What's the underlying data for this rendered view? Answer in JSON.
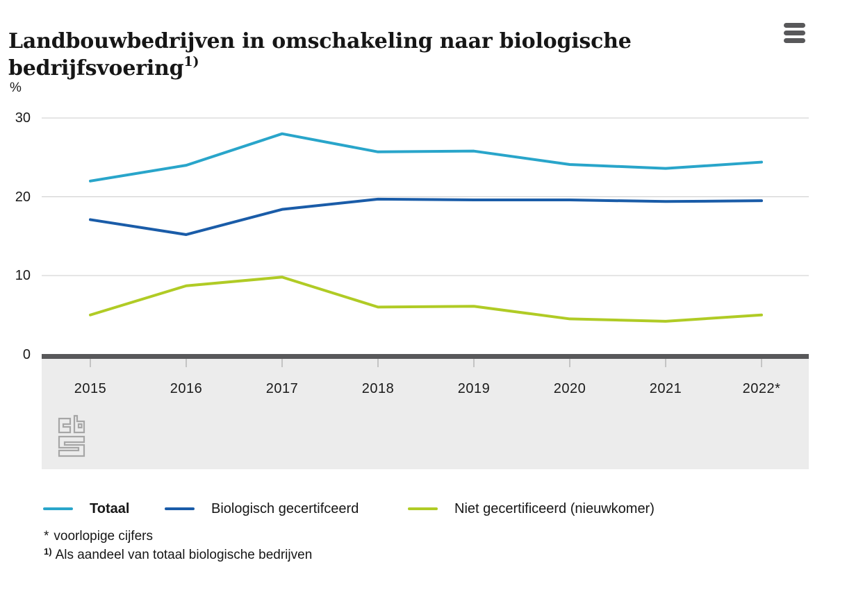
{
  "header": {
    "title_line1": "Landbouwbedrijven in omschakeling naar biologische",
    "title_line2": "bedrijfsvoering",
    "title_superscript": "1)",
    "menu_icon": "hamburger-icon"
  },
  "chart_data": {
    "type": "line",
    "title": "Landbouwbedrijven in omschakeling naar biologische bedrijfsvoering 1)",
    "unit_label": "%",
    "categories": [
      "2015",
      "2016",
      "2017",
      "2018",
      "2019",
      "2020",
      "2021",
      "2022*"
    ],
    "series": [
      {
        "name": "Totaal",
        "color": "#29a5ca",
        "emphasized": true,
        "values": [
          22.0,
          24.0,
          28.0,
          25.7,
          25.8,
          24.1,
          23.6,
          24.4
        ]
      },
      {
        "name": "Biologisch gecertifceerd",
        "color": "#1a5ca8",
        "emphasized": false,
        "values": [
          17.1,
          15.2,
          18.4,
          19.7,
          19.6,
          19.6,
          19.4,
          19.5
        ]
      },
      {
        "name": "Niet gecertificeerd (nieuwkomer)",
        "color": "#b0cb25",
        "emphasized": false,
        "values": [
          5.0,
          8.7,
          9.8,
          6.0,
          6.1,
          4.5,
          4.2,
          5.0
        ]
      }
    ],
    "ylim": [
      0,
      30
    ],
    "yticks": [
      0,
      10,
      20,
      30
    ],
    "grid": true,
    "legend_position": "bottom",
    "colors": {
      "gridline": "#cbcbcb",
      "axis_line": "#58585a",
      "axis_band": "#ececec",
      "tick_mark": "#9b9b9b",
      "logo_gray": "#a6a6a6",
      "menu_gray": "#58585a"
    }
  },
  "footnotes": [
    {
      "marker": "*",
      "superscript": false,
      "text": "voorlopige cijfers"
    },
    {
      "marker": "1)",
      "superscript": true,
      "text": "Als aandeel van totaal biologische bedrijven"
    }
  ],
  "branding": {
    "logo_name": "cbs-logo"
  }
}
